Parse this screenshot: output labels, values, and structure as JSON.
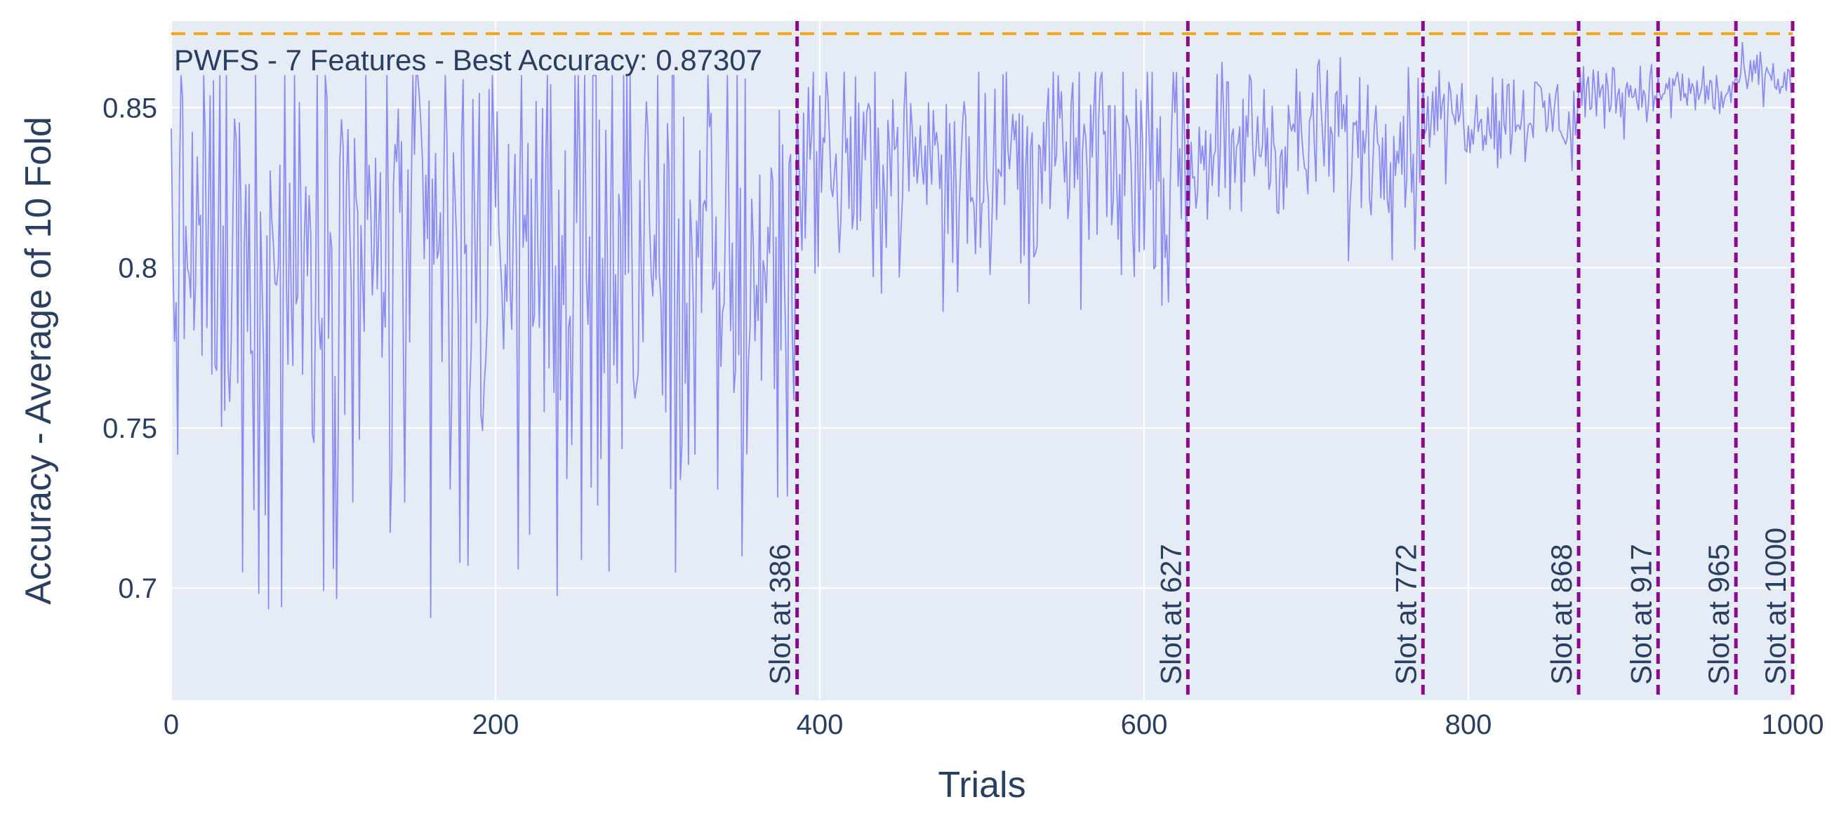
{
  "chart_data": {
    "type": "line",
    "title": "",
    "xlabel": "Trials",
    "ylabel": "Accuracy - Average of 10 Fold",
    "xlim": [
      0,
      1000
    ],
    "ylim": [
      0.665,
      0.877
    ],
    "x_ticks": [
      0,
      200,
      400,
      600,
      800,
      1000
    ],
    "y_ticks": [
      0.7,
      0.75,
      0.8,
      0.85
    ],
    "y_tick_labels": [
      "0.7",
      "0.75",
      "0.8",
      "0.85"
    ],
    "grid": true,
    "best_accuracy": {
      "value": 0.87307,
      "label": "PWFS - 7 Features - Best Accuracy: 0.87307",
      "color": "#f4a51c"
    },
    "slots": [
      {
        "x": 386,
        "label": "Slot at 386"
      },
      {
        "x": 627,
        "label": "Slot at 627"
      },
      {
        "x": 772,
        "label": "Slot at 772"
      },
      {
        "x": 868,
        "label": "Slot at 868"
      },
      {
        "x": 917,
        "label": "Slot at 917"
      },
      {
        "x": 965,
        "label": "Slot at 965"
      },
      {
        "x": 1000,
        "label": "Slot at 1000"
      }
    ],
    "slot_color": "#8b0a8b",
    "series": [
      {
        "color": "#8c8cf0",
        "n_trials": 1000,
        "segments": [
          {
            "x_start": 0,
            "x_end": 386,
            "mean": 0.805,
            "spread": 0.038,
            "min": 0.688,
            "max": 0.86
          },
          {
            "x_start": 386,
            "x_end": 627,
            "mean": 0.835,
            "spread": 0.016,
            "min": 0.78,
            "max": 0.861
          },
          {
            "x_start": 627,
            "x_end": 772,
            "mean": 0.84,
            "spread": 0.012,
            "min": 0.8,
            "max": 0.872
          },
          {
            "x_start": 772,
            "x_end": 868,
            "mean": 0.848,
            "spread": 0.007,
            "min": 0.825,
            "max": 0.865
          },
          {
            "x_start": 868,
            "x_end": 917,
            "mean": 0.855,
            "spread": 0.005,
            "min": 0.84,
            "max": 0.868
          },
          {
            "x_start": 917,
            "x_end": 965,
            "mean": 0.855,
            "spread": 0.004,
            "min": 0.845,
            "max": 0.866
          },
          {
            "x_start": 965,
            "x_end": 1000,
            "mean": 0.859,
            "spread": 0.004,
            "min": 0.85,
            "max": 0.873
          }
        ]
      }
    ]
  }
}
